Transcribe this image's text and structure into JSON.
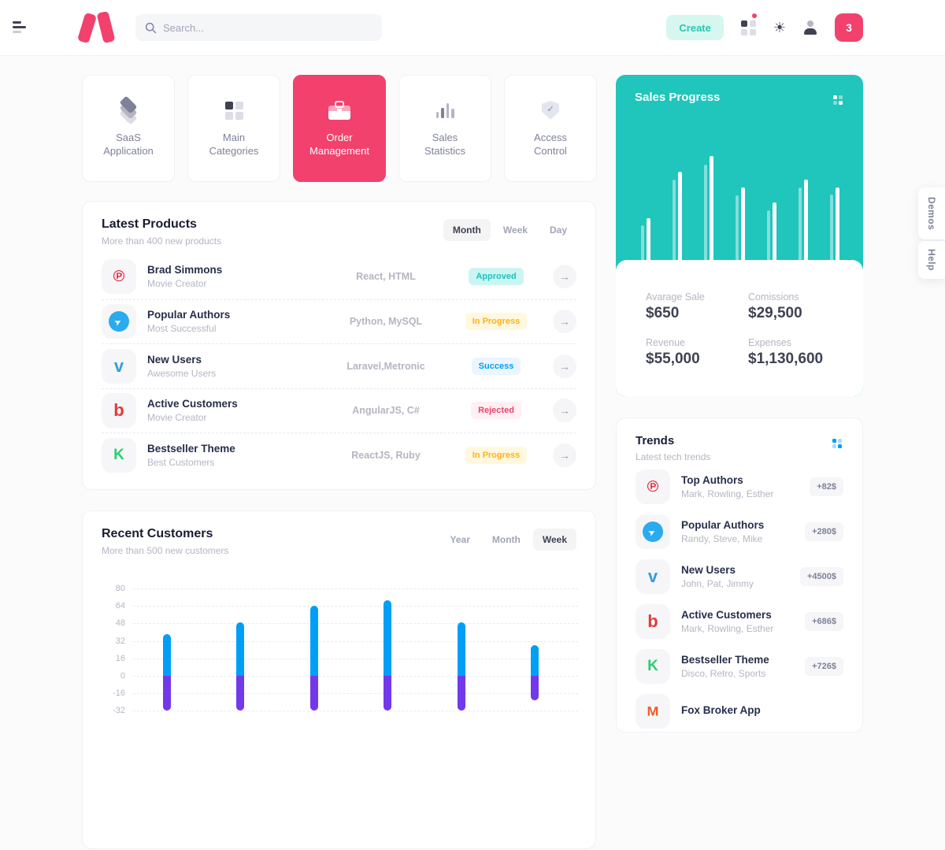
{
  "colors": {
    "accent_pink": "#F1416C",
    "teal": "#20C5BB",
    "blue": "#009EF7",
    "purple": "#7239EA",
    "warning": "#FFB01A"
  },
  "header": {
    "search_placeholder": "Search...",
    "create_label": "Create",
    "notification_count": "3"
  },
  "side_tabs": {
    "demos": "Demos",
    "help": "Help"
  },
  "nav_cards": [
    {
      "label": "SaaS\nApplication",
      "icon": "layers-icon",
      "active": false
    },
    {
      "label": "Main\nCategories",
      "icon": "grid-icon",
      "active": false
    },
    {
      "label": "Order\nManagement",
      "icon": "briefcase-icon",
      "active": true
    },
    {
      "label": "Sales\nStatistics",
      "icon": "bar-chart-icon",
      "active": false
    },
    {
      "label": "Access\nControl",
      "icon": "shield-check-icon",
      "active": false
    }
  ],
  "latest_products": {
    "title": "Latest Products",
    "subtitle": "More than 400 new products",
    "tabs": [
      "Month",
      "Week",
      "Day"
    ],
    "active_tab": 0,
    "rows": [
      {
        "brand": "pinterest",
        "name": "Brad Simmons",
        "role": "Movie Creator",
        "tech": "React, HTML",
        "status": "Approved",
        "status_type": "approved"
      },
      {
        "brand": "telegram",
        "name": "Popular Authors",
        "role": "Most Successful",
        "tech": "Python, MySQL",
        "status": "In Progress",
        "status_type": "progress"
      },
      {
        "brand": "vimeo",
        "name": "New Users",
        "role": "Awesome Users",
        "tech": "Laravel,Metronic",
        "status": "Success",
        "status_type": "success"
      },
      {
        "brand": "bebo",
        "name": "Active Customers",
        "role": "Movie Creator",
        "tech": "AngularJS, C#",
        "status": "Rejected",
        "status_type": "rejected"
      },
      {
        "brand": "kickstarter",
        "name": "Bestseller Theme",
        "role": "Best Customers",
        "tech": "ReactJS, Ruby",
        "status": "In Progress",
        "status_type": "progress"
      }
    ]
  },
  "sales_progress": {
    "title": "Sales Progress",
    "stats": [
      {
        "label": "Avarage Sale",
        "value": "$650"
      },
      {
        "label": "Comissions",
        "value": "$29,500"
      },
      {
        "label": "Revenue",
        "value": "$55,000"
      },
      {
        "label": "Expenses",
        "value": "$1,130,600"
      }
    ]
  },
  "recent_customers": {
    "title": "Recent Customers",
    "subtitle": "More than 500 new customers",
    "tabs": [
      "Year",
      "Month",
      "Week"
    ],
    "active_tab": 2
  },
  "trends": {
    "title": "Trends",
    "subtitle": "Latest tech trends",
    "items": [
      {
        "brand": "pinterest",
        "name": "Top Authors",
        "sub": "Mark, Rowling, Esther",
        "value": "+82$"
      },
      {
        "brand": "telegram",
        "name": "Popular Authors",
        "sub": "Randy, Steve, Mike",
        "value": "+280$"
      },
      {
        "brand": "vimeo",
        "name": "New Users",
        "sub": "John, Pat, Jimmy",
        "value": "+4500$"
      },
      {
        "brand": "bebo",
        "name": "Active Customers",
        "sub": "Mark, Rowling, Esther",
        "value": "+686$"
      },
      {
        "brand": "kickstarter",
        "name": "Bestseller Theme",
        "sub": "Disco, Retro, Sports",
        "value": "+726$"
      },
      {
        "brand": "fox",
        "name": "Fox Broker App",
        "sub": "",
        "value": ""
      }
    ]
  },
  "chart_data": [
    {
      "id": "sales_progress",
      "type": "bar",
      "title": "Sales Progress",
      "legend": "none",
      "grid": false,
      "note": "white paired bars on teal card, values estimated 0-100",
      "series": [
        {
          "name": "secondary",
          "color": "rgba(255,255,255,0.45)",
          "values": [
            33,
            77,
            92,
            62,
            48,
            70,
            63
          ]
        },
        {
          "name": "primary",
          "color": "#FFFFFF",
          "values": [
            40,
            85,
            100,
            70,
            55,
            77,
            70
          ]
        }
      ]
    },
    {
      "id": "recent_customers",
      "type": "bar",
      "title": "Recent Customers",
      "grid": true,
      "y_ticks": [
        80,
        64,
        48,
        32,
        16,
        0,
        -16,
        -32
      ],
      "ylim": [
        -32,
        80
      ],
      "note": "stacked positive/negative rounded bars; lower ends clipped by viewport, negatives estimated",
      "series": [
        {
          "name": "positive",
          "color": "#009EF7",
          "values": [
            38,
            49,
            64,
            69,
            49,
            28
          ]
        },
        {
          "name": "negative",
          "color": "#7239EA",
          "values": [
            -32,
            -32,
            -32,
            -32,
            -32,
            -22
          ]
        }
      ]
    }
  ]
}
